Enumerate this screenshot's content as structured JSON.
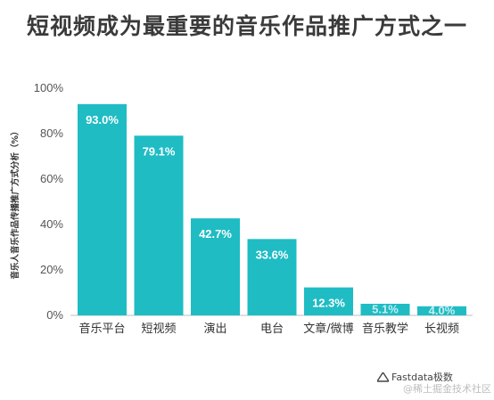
{
  "chart_data": {
    "type": "bar",
    "title": "短视频成为最重要的音乐作品推广方式之一",
    "ylabel": "音乐人音乐作品传播推广方式分析（%）",
    "xlabel": "",
    "categories": [
      "音乐平台",
      "短视频",
      "演出",
      "电台",
      "文章/微博",
      "音乐教学",
      "长视频"
    ],
    "values": [
      93.0,
      79.1,
      42.7,
      33.6,
      12.3,
      5.1,
      4.0
    ],
    "value_labels": [
      "93.0%",
      "79.1%",
      "42.7%",
      "33.6%",
      "12.3%",
      "5.1%",
      "4.0%"
    ],
    "yticks": [
      "0%",
      "20%",
      "40%",
      "60%",
      "80%",
      "100%"
    ],
    "ytick_values": [
      0,
      20,
      40,
      60,
      80,
      100
    ],
    "ylim": [
      0,
      100
    ],
    "grid": false,
    "bar_color": "#1fbcc4"
  },
  "watermark": {
    "brand": "Fastdata极数",
    "sub": "@稀土掘金技术社区"
  }
}
